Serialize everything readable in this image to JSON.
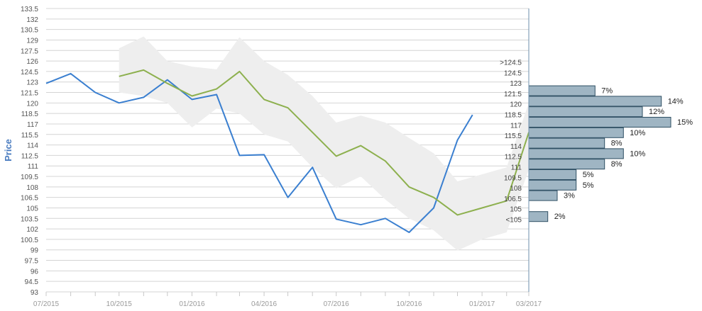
{
  "chart_data": {
    "type": "line",
    "ylabel": "Price",
    "xlabel": "",
    "ylim": [
      93,
      133.5
    ],
    "grid": true,
    "y_ticks": [
      "133.5",
      "132",
      "130.5",
      "129",
      "127.5",
      "126",
      "124.5",
      "123",
      "121.5",
      "120",
      "118.5",
      "117",
      "115.5",
      "114",
      "112.5",
      "111",
      "109.5",
      "108",
      "106.5",
      "105",
      "103.5",
      "102",
      "100.5",
      "99",
      "97.5",
      "96",
      "94.5",
      "93"
    ],
    "x_ticks": [
      "07/2015",
      "10/2015",
      "01/2016",
      "04/2016",
      "07/2016",
      "10/2016",
      "01/2017",
      "03/2017"
    ],
    "series": [
      {
        "color": "#3a7fd0",
        "points": [
          [
            "2015-07-01",
            122.8
          ],
          [
            "2015-08-01",
            124.2
          ],
          [
            "2015-09-01",
            121.5
          ],
          [
            "2015-10-01",
            120.0
          ],
          [
            "2015-11-01",
            120.8
          ],
          [
            "2015-12-01",
            123.3
          ],
          [
            "2016-01-01",
            120.5
          ],
          [
            "2016-02-01",
            121.2
          ],
          [
            "2016-03-01",
            112.5
          ],
          [
            "2016-04-01",
            112.6
          ],
          [
            "2016-05-01",
            106.5
          ],
          [
            "2016-06-01",
            110.8
          ],
          [
            "2016-07-01",
            103.4
          ],
          [
            "2016-08-01",
            102.6
          ],
          [
            "2016-09-01",
            103.5
          ],
          [
            "2016-10-01",
            101.5
          ],
          [
            "2016-11-01",
            105.0
          ],
          [
            "2016-12-01",
            114.7
          ],
          [
            "2016-12-20",
            118.3
          ]
        ]
      },
      {
        "color": "#8db04e",
        "points": [
          [
            "2015-10-01",
            123.8
          ],
          [
            "2015-11-01",
            124.7
          ],
          [
            "2015-12-01",
            122.8
          ],
          [
            "2016-01-01",
            121.0
          ],
          [
            "2016-02-01",
            122.0
          ],
          [
            "2016-03-01",
            124.5
          ],
          [
            "2016-04-01",
            120.5
          ],
          [
            "2016-05-01",
            119.3
          ],
          [
            "2016-06-01",
            115.8
          ],
          [
            "2016-07-01",
            112.4
          ],
          [
            "2016-08-01",
            113.9
          ],
          [
            "2016-09-01",
            111.7
          ],
          [
            "2016-10-01",
            108.0
          ],
          [
            "2016-11-01",
            106.5
          ],
          [
            "2016-12-01",
            104.0
          ],
          [
            "2017-01-01",
            105.0
          ],
          [
            "2017-02-01",
            106.0
          ],
          [
            "2017-03-01",
            115.8
          ]
        ]
      }
    ],
    "band": {
      "color": "#eeeeee",
      "upper": [
        [
          "2015-10-01",
          127.8
        ],
        [
          "2015-11-01",
          129.5
        ],
        [
          "2015-12-01",
          126.0
        ],
        [
          "2016-01-01",
          125.2
        ],
        [
          "2016-02-01",
          124.8
        ],
        [
          "2016-03-01",
          129.4
        ],
        [
          "2016-04-01",
          126.0
        ],
        [
          "2016-05-01",
          124.0
        ],
        [
          "2016-06-01",
          121.0
        ],
        [
          "2016-07-01",
          117.2
        ],
        [
          "2016-08-01",
          118.2
        ],
        [
          "2016-09-01",
          117.2
        ],
        [
          "2016-10-01",
          115.0
        ],
        [
          "2016-11-01",
          112.8
        ],
        [
          "2016-12-01",
          108.8
        ],
        [
          "2017-01-01",
          109.8
        ],
        [
          "2017-02-01",
          110.8
        ],
        [
          "2017-03-01",
          120.0
        ]
      ],
      "lower": [
        [
          "2015-10-01",
          121.5
        ],
        [
          "2015-11-01",
          121.0
        ],
        [
          "2015-12-01",
          120.0
        ],
        [
          "2016-01-01",
          116.5
        ],
        [
          "2016-02-01",
          119.2
        ],
        [
          "2016-03-01",
          118.5
        ],
        [
          "2016-04-01",
          115.5
        ],
        [
          "2016-05-01",
          114.5
        ],
        [
          "2016-06-01",
          110.8
        ],
        [
          "2016-07-01",
          107.8
        ],
        [
          "2016-08-01",
          109.5
        ],
        [
          "2016-09-01",
          106.2
        ],
        [
          "2016-10-01",
          103.5
        ],
        [
          "2016-11-01",
          101.8
        ],
        [
          "2016-12-01",
          98.9
        ],
        [
          "2017-01-01",
          100.5
        ],
        [
          "2017-02-01",
          101.5
        ],
        [
          "2017-03-01",
          110.5
        ]
      ]
    },
    "histogram": {
      "bar_color": "#9fb5c3",
      "border_color": "#2f4f63",
      "bins": [
        {
          "label": ">124.5",
          "pct": 0
        },
        {
          "label": "124.5",
          "pct": 0
        },
        {
          "label": "123",
          "pct": 7
        },
        {
          "label": "121.5",
          "pct": 14
        },
        {
          "label": "120",
          "pct": 12
        },
        {
          "label": "118.5",
          "pct": 15
        },
        {
          "label": "117",
          "pct": 10
        },
        {
          "label": "115.5",
          "pct": 8
        },
        {
          "label": "114",
          "pct": 10
        },
        {
          "label": "112.5",
          "pct": 8
        },
        {
          "label": "111",
          "pct": 5
        },
        {
          "label": "109.5",
          "pct": 5
        },
        {
          "label": "108",
          "pct": 3
        },
        {
          "label": "106.5",
          "pct": 0
        },
        {
          "label": "105",
          "pct": 2
        },
        {
          "label": "<105",
          "pct": 0
        }
      ]
    }
  }
}
